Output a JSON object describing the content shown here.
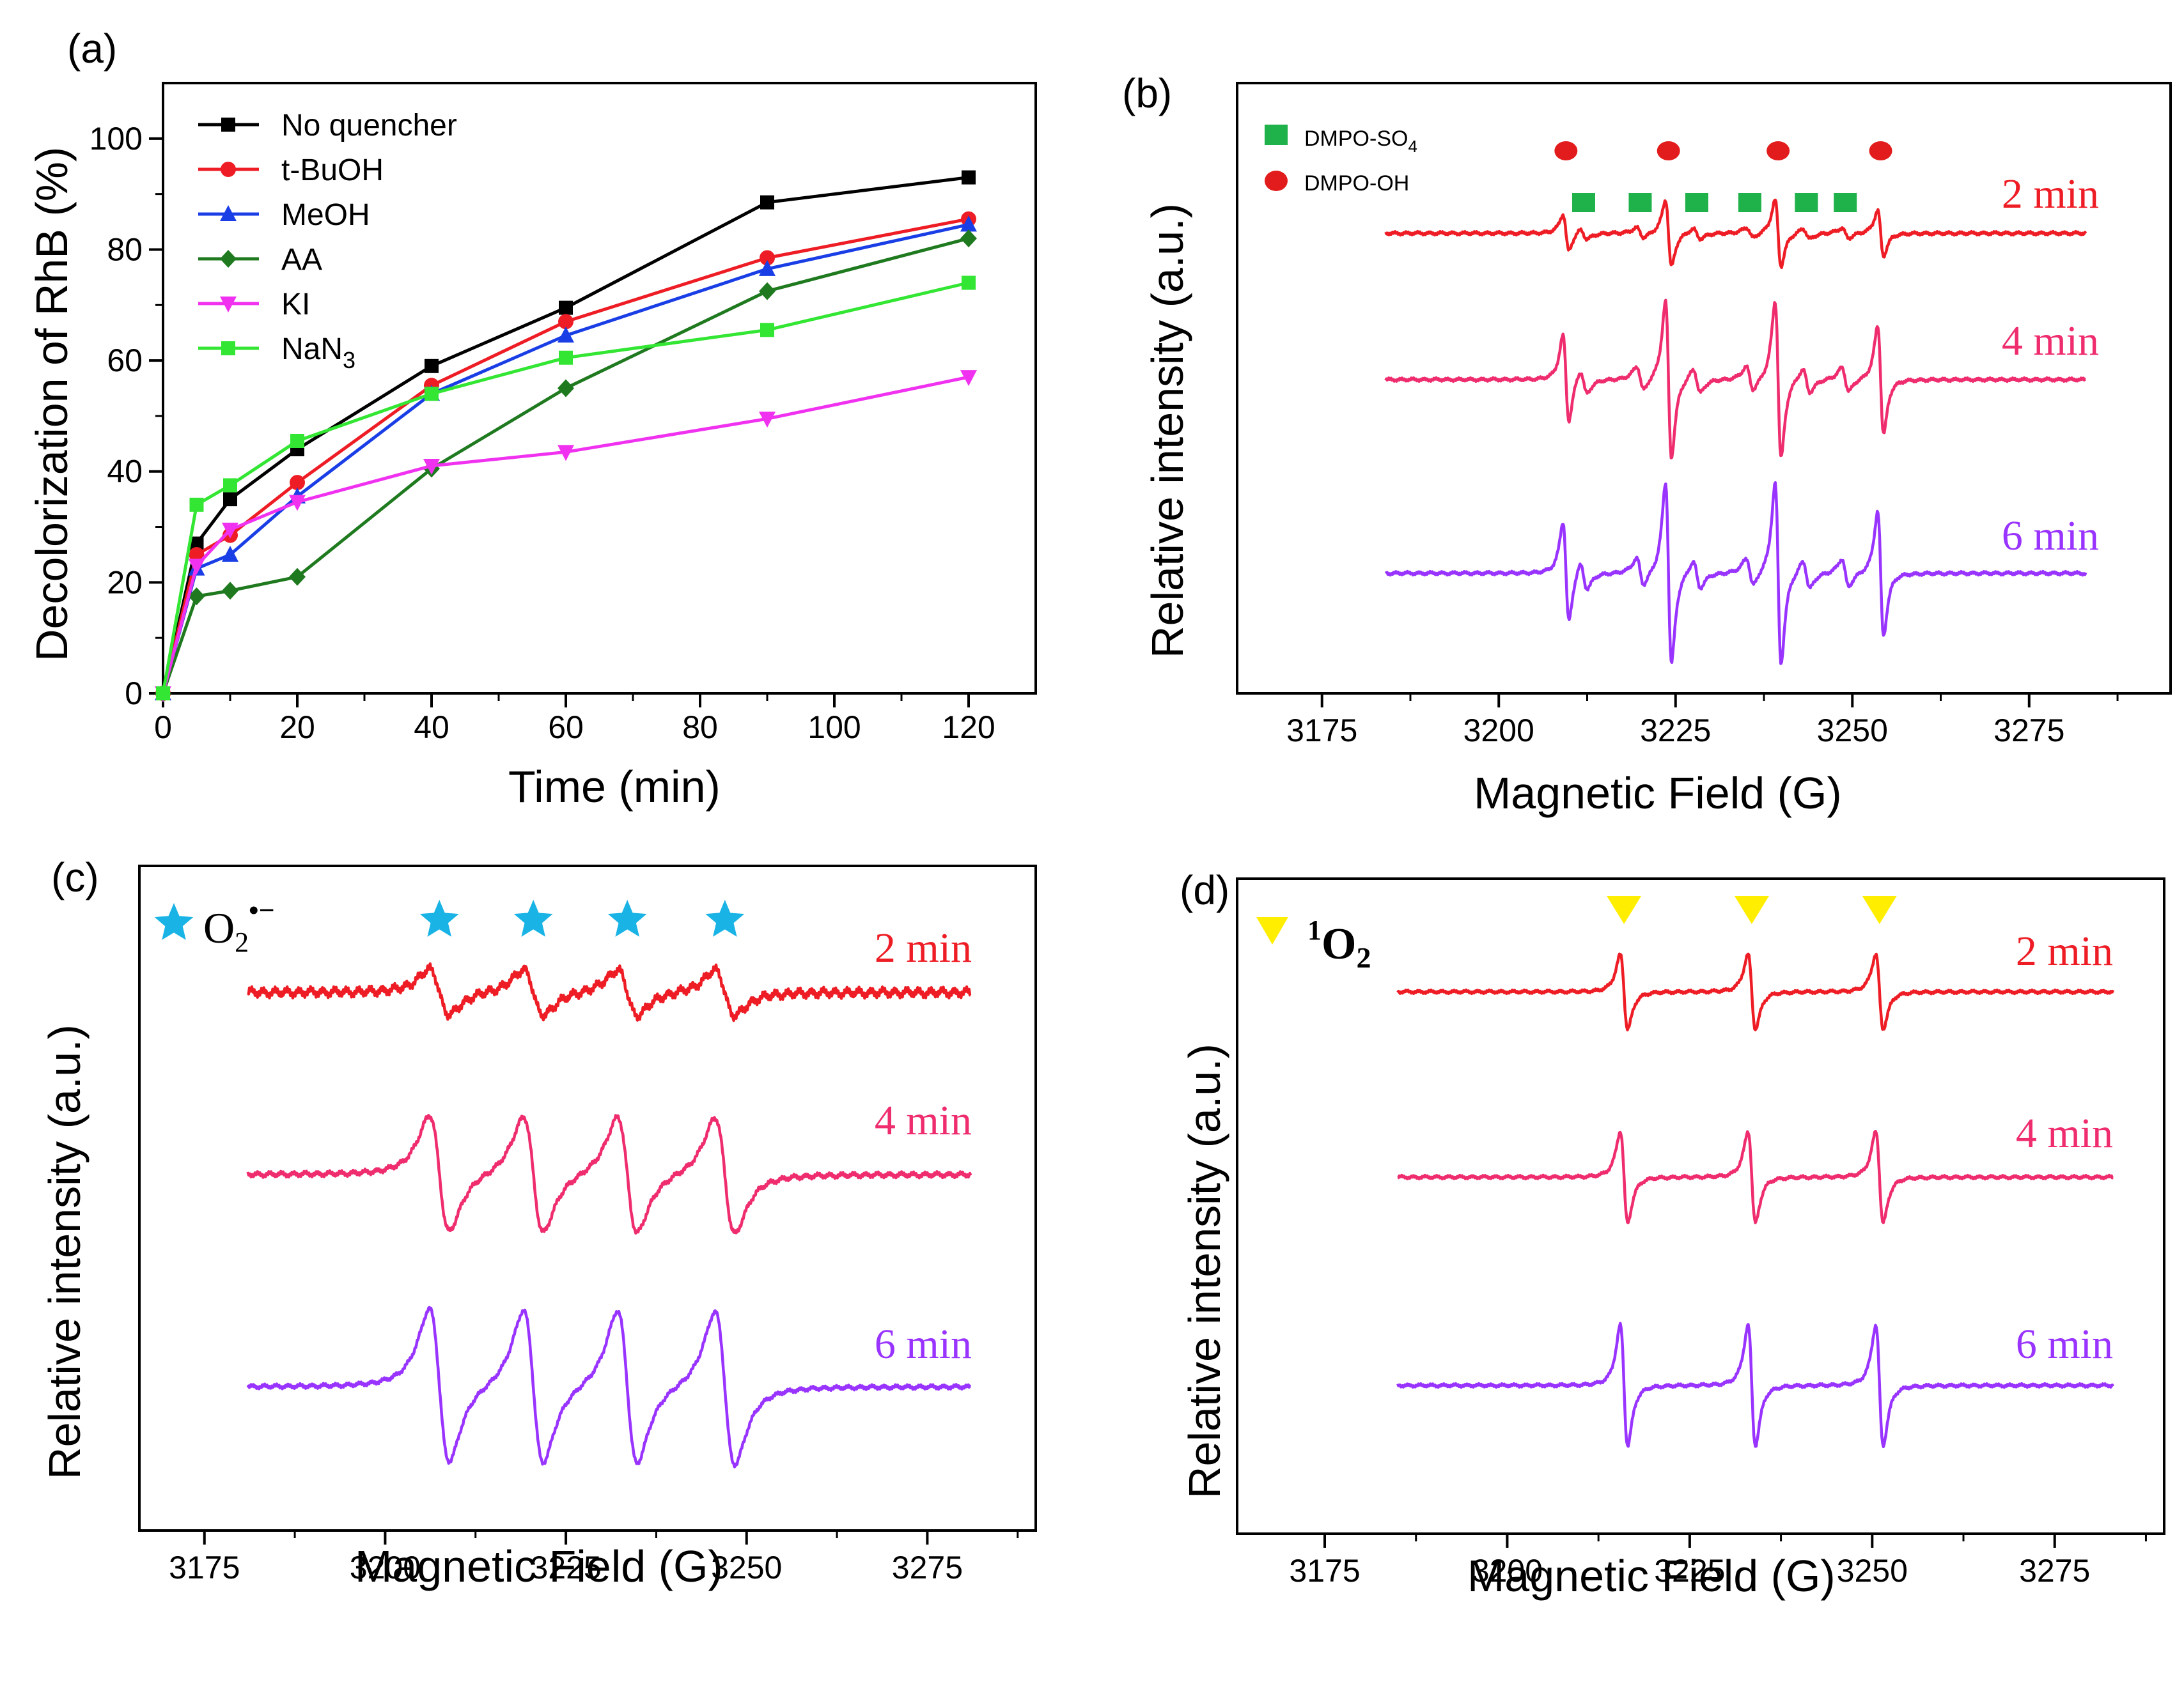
{
  "colors": {
    "no_quencher": "#000000",
    "t_buoh": "#ee1c24",
    "meoh": "#1a3ee6",
    "aa": "#1f7a1f",
    "ki": "#f032f0",
    "nan3": "#33e633",
    "epr_2min": "#ee1c24",
    "epr_4min": "#ee2c6e",
    "epr_6min": "#9933ff",
    "dmpo_so4": "#1fb14a",
    "dmpo_oh": "#e21c1c",
    "superoxide": "#1ab3e6",
    "singlet": "#ffee00"
  },
  "chart_data": [
    {
      "panel": "(a)",
      "type": "line",
      "xlabel": "Time (min)",
      "ylabel": "Decolorization of RhB (%)",
      "xlim": [
        0,
        130
      ],
      "ylim": [
        0,
        110
      ],
      "xticks": [
        "0",
        "20",
        "40",
        "60",
        "80",
        "100",
        "120"
      ],
      "yticks": [
        "0",
        "20",
        "40",
        "60",
        "80",
        "100"
      ],
      "x": [
        0,
        5,
        10,
        20,
        40,
        60,
        90,
        120
      ],
      "legend_position": "top-left",
      "series": [
        {
          "name": "No quencher",
          "key": "no_quencher",
          "marker": "square",
          "values": [
            0,
            27,
            35,
            44,
            59,
            69.5,
            88.5,
            93
          ]
        },
        {
          "name": "t-BuOH",
          "key": "t_buoh",
          "marker": "circle",
          "values": [
            0,
            25,
            28.5,
            38,
            55.5,
            67,
            78.5,
            85.5
          ]
        },
        {
          "name": "MeOH",
          "key": "meoh",
          "marker": "triangle-up",
          "values": [
            0,
            22.5,
            25,
            35.5,
            54,
            64.5,
            76.5,
            84.5
          ]
        },
        {
          "name": "AA",
          "key": "aa",
          "marker": "diamond",
          "values": [
            0,
            17.5,
            18.5,
            21,
            40.5,
            55,
            72.5,
            82
          ]
        },
        {
          "name": "KI",
          "key": "ki",
          "marker": "triangle-down",
          "values": [
            0,
            23,
            29.5,
            34.5,
            41,
            43.5,
            49.5,
            57
          ]
        },
        {
          "name": "NaN3",
          "key": "nan3",
          "marker": "square",
          "values": [
            0,
            34,
            37.5,
            45.5,
            54,
            60.5,
            65.5,
            74
          ]
        }
      ],
      "legend_labels": {
        "no_quencher": "No quencher",
        "t_buoh": "t-BuOH",
        "meoh": "MeOH",
        "aa": "AA",
        "ki": "KI",
        "nan3_base": "NaN",
        "nan3_sub": "3"
      }
    },
    {
      "panel": "(b)",
      "type": "line",
      "xlabel": "Magnetic Field (G)",
      "ylabel": "Relative intensity (a.u.)",
      "xlim": [
        3163,
        3295
      ],
      "xticks": [
        "3175",
        "3200",
        "3225",
        "3250",
        "3275"
      ],
      "field_range": [
        3184,
        3283
      ],
      "series_labels": [
        "2 min",
        "4 min",
        "6 min"
      ],
      "legend": {
        "so4_base": "DMPO-SO",
        "so4_sub": "4",
        "oh": "DMPO-OH"
      },
      "dmpo_oh_peaks": [
        3209.5,
        3224,
        3239.5,
        3254
      ],
      "dmpo_so4_peaks": [
        3212,
        3220,
        3228,
        3235.5,
        3243.5,
        3249
      ],
      "amplitudes": [
        0.38,
        1.0,
        1.08
      ]
    },
    {
      "panel": "(c)",
      "type": "line",
      "xlabel": "Magnetic Field (G)",
      "ylabel": "Relative intensity (a.u.)",
      "xlim": [
        3166,
        3290
      ],
      "xticks": [
        "3175",
        "3200",
        "3225",
        "3250",
        "3275"
      ],
      "field_range": [
        3181,
        3281
      ],
      "series_labels": [
        "2 min",
        "4 min",
        "6 min"
      ],
      "species": {
        "base": "O",
        "sub": "2",
        "sup": "•−"
      },
      "peaks": [
        3207.5,
        3220.5,
        3233.5,
        3247
      ],
      "amplitudes": [
        0.3,
        1.0,
        1.35
      ]
    },
    {
      "panel": "(d)",
      "type": "line",
      "xlabel": "Magnetic Field (G)",
      "ylabel": "Relative intensity (a.u.)",
      "xlim": [
        3163,
        3290
      ],
      "xticks": [
        "3175",
        "3200",
        "3225",
        "3250",
        "3275"
      ],
      "field_range": [
        3185,
        3283
      ],
      "series_labels": [
        "2 min",
        "4 min",
        "6 min"
      ],
      "species": {
        "sup": "1",
        "base": "O",
        "sub": "2"
      },
      "peaks": [
        3216,
        3233.5,
        3251
      ],
      "amplitudes": [
        0.75,
        0.88,
        1.05
      ]
    }
  ]
}
